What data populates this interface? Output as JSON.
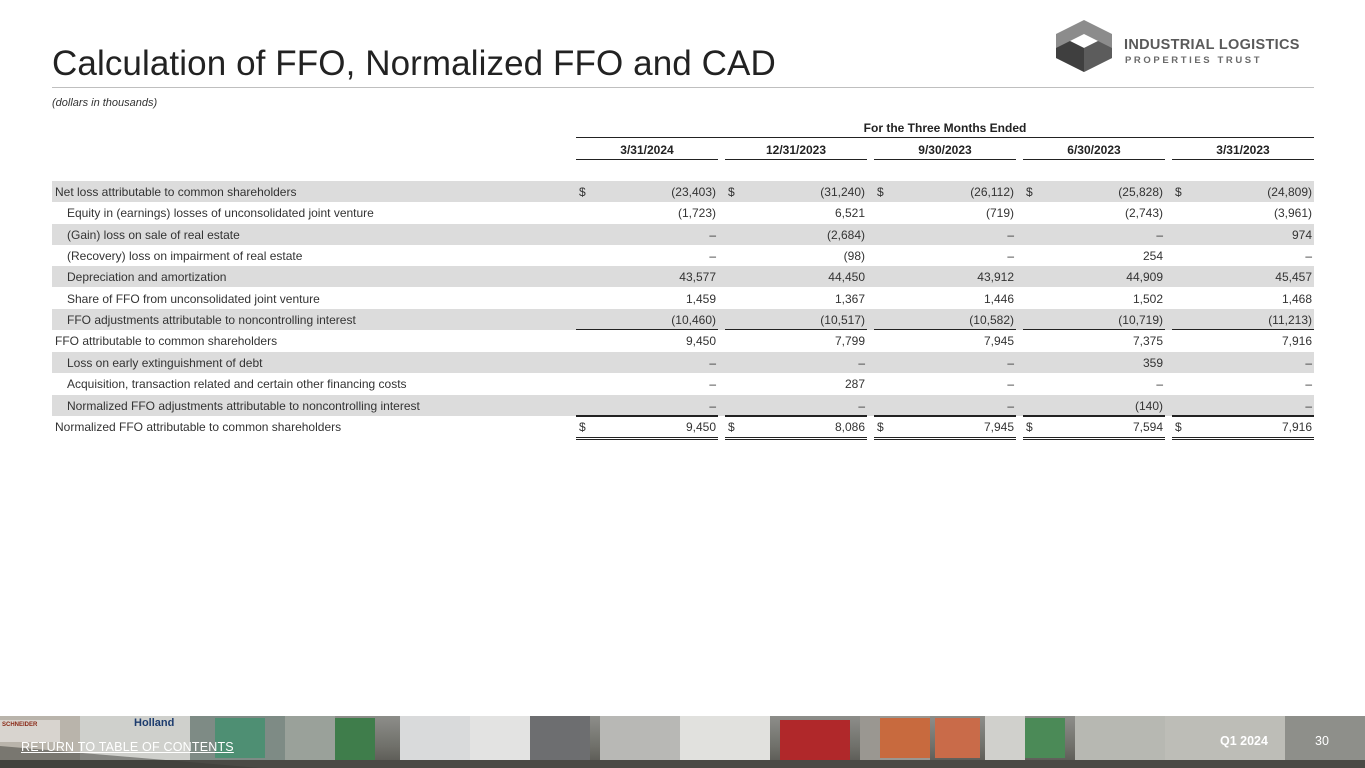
{
  "title": "Calculation of FFO, Normalized FFO and CAD",
  "subtitle": "(dollars in thousands)",
  "logo": {
    "line1": "INDUSTRIAL LOGISTICS",
    "line2": "PROPERTIES TRUST"
  },
  "table": {
    "period_header": "For the Three Months Ended",
    "columns": [
      "3/31/2024",
      "12/31/2023",
      "9/30/2023",
      "6/30/2023",
      "3/31/2023"
    ],
    "rows": [
      {
        "label": "Net loss attributable to common shareholders",
        "values": [
          "(23,403)",
          "(31,240)",
          "(26,112)",
          "(25,828)",
          "(24,809)"
        ],
        "dollar": "$"
      },
      {
        "label": "Equity in (earnings) losses of unconsolidated joint venture",
        "values": [
          "(1,723)",
          "6,521",
          "(719)",
          "(2,743)",
          "(3,961)"
        ]
      },
      {
        "label": "(Gain) loss on sale of real estate",
        "values": [
          "–",
          "(2,684)",
          "–",
          "–",
          "974"
        ]
      },
      {
        "label": "(Recovery) loss on impairment of real estate",
        "values": [
          "–",
          "(98)",
          "–",
          "254",
          "–"
        ]
      },
      {
        "label": "Depreciation and amortization",
        "values": [
          "43,577",
          "44,450",
          "43,912",
          "44,909",
          "45,457"
        ]
      },
      {
        "label": "Share of FFO from unconsolidated joint venture",
        "values": [
          "1,459",
          "1,367",
          "1,446",
          "1,502",
          "1,468"
        ]
      },
      {
        "label": "FFO adjustments attributable to noncontrolling interest",
        "values": [
          "(10,460)",
          "(10,517)",
          "(10,582)",
          "(10,719)",
          "(11,213)"
        ]
      },
      {
        "label": "FFO attributable to common shareholders",
        "values": [
          "9,450",
          "7,799",
          "7,945",
          "7,375",
          "7,916"
        ]
      },
      {
        "label": "Loss on early extinguishment of debt",
        "values": [
          "–",
          "–",
          "–",
          "359",
          "–"
        ]
      },
      {
        "label": "Acquisition, transaction related and certain other financing costs",
        "values": [
          "–",
          "287",
          "–",
          "–",
          "–"
        ]
      },
      {
        "label": "Normalized FFO adjustments attributable to noncontrolling interest",
        "values": [
          "–",
          "–",
          "–",
          "(140)",
          "–"
        ]
      },
      {
        "label": "Normalized FFO attributable to common shareholders",
        "values": [
          "9,450",
          "8,086",
          "7,945",
          "7,594",
          "7,916"
        ],
        "dollar": "$"
      }
    ]
  },
  "footer": {
    "link": "RETURN TO TABLE OF CONTENTS",
    "quarter": "Q1 2024",
    "page": "30",
    "photo_text": [
      "Holland",
      "SCHNEIDER"
    ]
  }
}
